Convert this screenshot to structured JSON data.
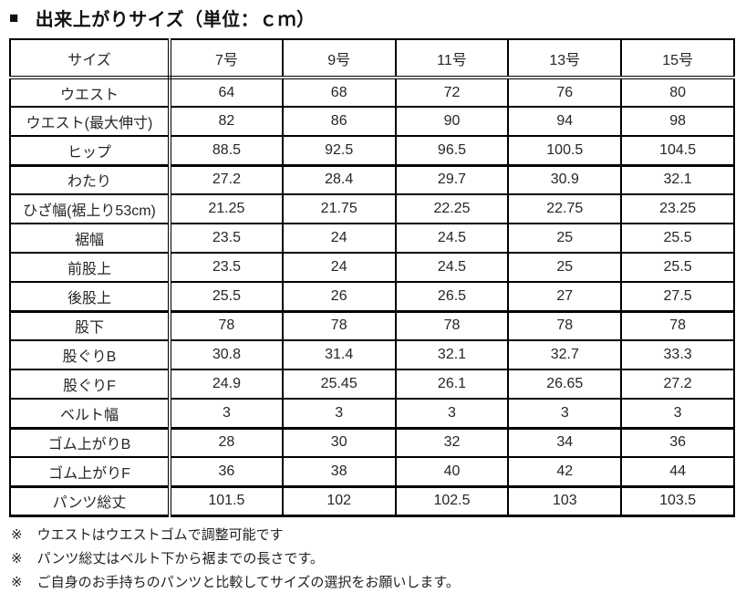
{
  "title": {
    "bullet": "■",
    "text": "出来上がりサイズ（単位：ｃｍ）"
  },
  "colors": {
    "background": "#ffffff",
    "border": "#000000",
    "text": "#262626",
    "title_text": "#111111"
  },
  "table": {
    "header": [
      "サイズ",
      "7号",
      "9号",
      "11号",
      "13号",
      "15号"
    ],
    "rows": [
      {
        "label": "ウエスト",
        "values": [
          "64",
          "68",
          "72",
          "76",
          "80"
        ]
      },
      {
        "label": "ウエスト(最大伸寸)",
        "values": [
          "82",
          "86",
          "90",
          "94",
          "98"
        ]
      },
      {
        "label": "ヒップ",
        "values": [
          "88.5",
          "92.5",
          "96.5",
          "100.5",
          "104.5"
        ]
      },
      {
        "label": "わたり",
        "values": [
          "27.2",
          "28.4",
          "29.7",
          "30.9",
          "32.1"
        ]
      },
      {
        "label": "ひざ幅(裾上り53cm)",
        "values": [
          "21.25",
          "21.75",
          "22.25",
          "22.75",
          "23.25"
        ]
      },
      {
        "label": "裾幅",
        "values": [
          "23.5",
          "24",
          "24.5",
          "25",
          "25.5"
        ]
      },
      {
        "label": "前股上",
        "values": [
          "23.5",
          "24",
          "24.5",
          "25",
          "25.5"
        ]
      },
      {
        "label": "後股上",
        "values": [
          "25.5",
          "26",
          "26.5",
          "27",
          "27.5"
        ]
      },
      {
        "label": "股下",
        "values": [
          "78",
          "78",
          "78",
          "78",
          "78"
        ]
      },
      {
        "label": "股ぐりB",
        "values": [
          "30.8",
          "31.4",
          "32.1",
          "32.7",
          "33.3"
        ]
      },
      {
        "label": "股ぐりF",
        "values": [
          "24.9",
          "25.45",
          "26.1",
          "26.65",
          "27.2"
        ]
      },
      {
        "label": "ベルト幅",
        "values": [
          "3",
          "3",
          "3",
          "3",
          "3"
        ]
      },
      {
        "label": "ゴム上がりB",
        "values": [
          "28",
          "30",
          "32",
          "34",
          "36"
        ]
      },
      {
        "label": "ゴム上がりF",
        "values": [
          "36",
          "38",
          "40",
          "42",
          "44"
        ]
      },
      {
        "label": "パンツ総丈",
        "values": [
          "101.5",
          "102",
          "102.5",
          "103",
          "103.5"
        ]
      }
    ]
  },
  "footnotes": [
    {
      "marker": "※",
      "text": "ウエストはウエストゴムで調整可能です"
    },
    {
      "marker": "※",
      "text": "パンツ総丈はベルト下から裾までの長さです。"
    },
    {
      "marker": "※",
      "text": "ご自身のお手持ちのパンツと比較してサイズの選択をお願いします。"
    }
  ]
}
